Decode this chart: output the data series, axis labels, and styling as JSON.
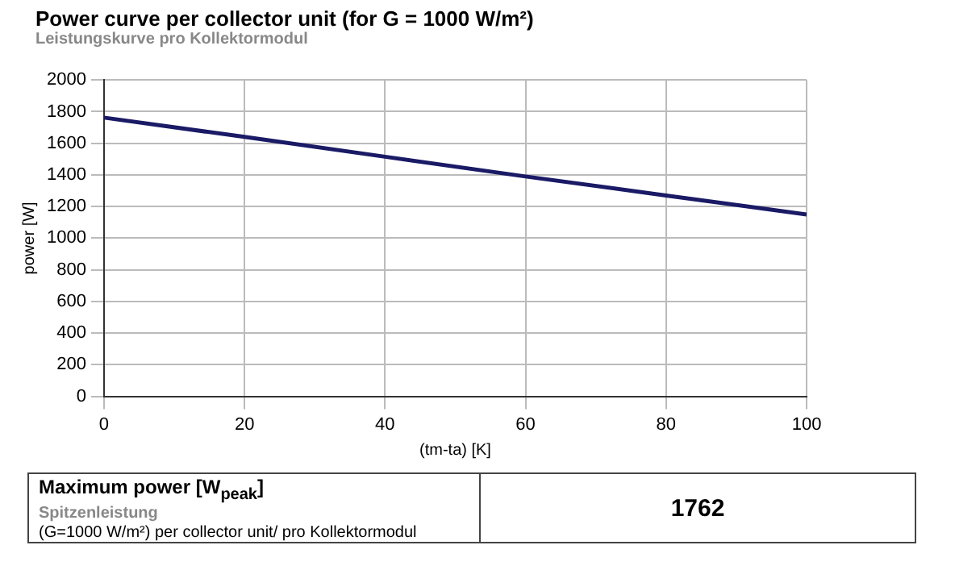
{
  "chart_data": {
    "type": "line",
    "title": "Power curve per collector unit (for G = 1000 W/m²)",
    "subtitle": "Leistungskurve pro Kollektormodul",
    "xlabel": "(tm-ta) [K]",
    "ylabel": "power [W]",
    "x": [
      0,
      20,
      40,
      60,
      80,
      100
    ],
    "series": [
      {
        "color": "#1a1a66",
        "values": [
          1762,
          1640,
          1515,
          1390,
          1270,
          1150
        ]
      }
    ],
    "xlim": [
      0,
      100
    ],
    "xticks": [
      0,
      20,
      40,
      60,
      80,
      100
    ],
    "ylim": [
      0,
      2000
    ],
    "yticks": [
      0,
      200,
      400,
      600,
      800,
      1000,
      1200,
      1400,
      1600,
      1800,
      2000
    ],
    "grid": true,
    "legend": false,
    "marker": "none",
    "line_style": "solid",
    "annotations": [
      "Maximum power [W$_{peak}$]",
      "Spitzenleistung",
      "(G=1000 W/m²) per collector unit/ pro Kollektormodul",
      "1762"
    ]
  }
}
